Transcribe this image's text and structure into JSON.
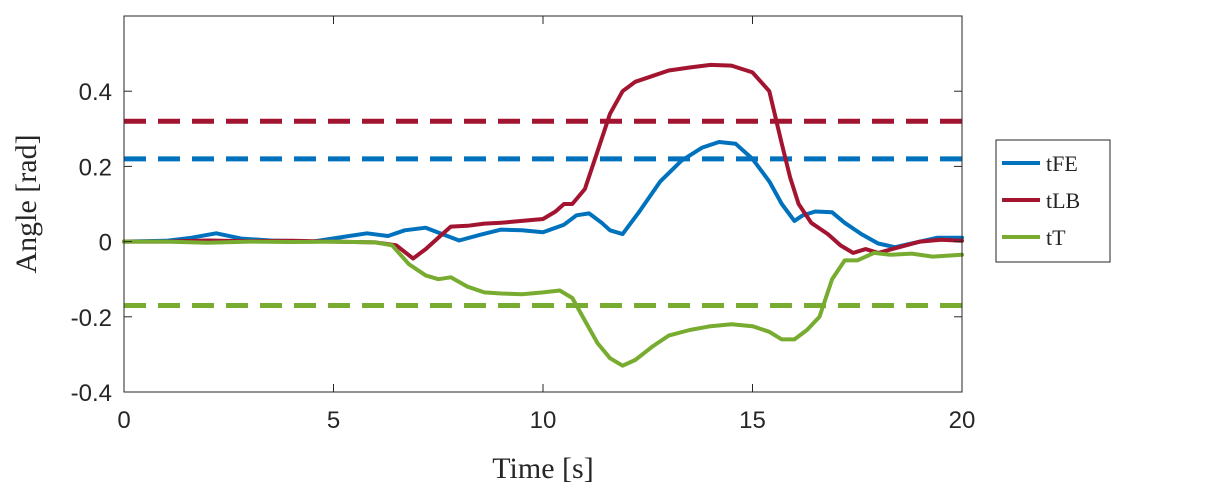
{
  "chart_data": {
    "type": "line",
    "xlabel": "Time [s]",
    "ylabel": "Angle [rad]",
    "xlim": [
      0,
      20
    ],
    "ylim": [
      -0.4,
      0.6
    ],
    "xticks": [
      0,
      5,
      10,
      15,
      20
    ],
    "xtick_labels": [
      "0",
      "5",
      "10",
      "15",
      "20"
    ],
    "yticks": [
      -0.4,
      -0.2,
      0,
      0.2,
      0.4
    ],
    "ytick_labels": [
      "-0.4",
      "-0.2",
      "0",
      "0.2",
      "0.4"
    ],
    "grid": false,
    "legend_position": "outside-right",
    "series": [
      {
        "name": "tFE",
        "color": "#0072BD",
        "style": "solid",
        "x": [
          0,
          1,
          1.6,
          2.2,
          2.8,
          3.5,
          4.5,
          5.2,
          5.8,
          6.3,
          6.7,
          7.2,
          7.6,
          8.0,
          8.5,
          9.0,
          9.5,
          10.0,
          10.5,
          10.8,
          11.1,
          11.4,
          11.6,
          11.9,
          12.3,
          12.8,
          13.3,
          13.8,
          14.2,
          14.6,
          15.0,
          15.4,
          15.7,
          16.0,
          16.2,
          16.5,
          16.9,
          17.2,
          17.6,
          18.0,
          18.4,
          18.8,
          19.4,
          20.0
        ],
        "y": [
          0,
          0.002,
          0.01,
          0.022,
          0.008,
          0.003,
          0.0,
          0.012,
          0.022,
          0.015,
          0.03,
          0.037,
          0.02,
          0.003,
          0.018,
          0.032,
          0.03,
          0.025,
          0.045,
          0.07,
          0.075,
          0.05,
          0.03,
          0.02,
          0.08,
          0.16,
          0.215,
          0.25,
          0.265,
          0.26,
          0.22,
          0.16,
          0.1,
          0.055,
          0.07,
          0.08,
          0.078,
          0.05,
          0.02,
          -0.005,
          -0.015,
          -0.005,
          0.01,
          0.01
        ]
      },
      {
        "name": "tLB",
        "color": "#A2142F",
        "style": "solid",
        "x": [
          0,
          1,
          2,
          3,
          4,
          5,
          6,
          6.5,
          6.9,
          7.2,
          7.5,
          7.8,
          8.2,
          8.6,
          9.0,
          9.5,
          10.0,
          10.3,
          10.5,
          10.7,
          11.0,
          11.3,
          11.6,
          11.9,
          12.2,
          12.6,
          13.0,
          13.5,
          14.0,
          14.5,
          15.0,
          15.4,
          15.7,
          15.9,
          16.1,
          16.4,
          16.8,
          17.1,
          17.4,
          17.7,
          18.0,
          18.5,
          19.0,
          19.5,
          20.0
        ],
        "y": [
          0,
          0,
          0.003,
          0.001,
          0.002,
          0.0,
          -0.002,
          -0.01,
          -0.045,
          -0.02,
          0.01,
          0.04,
          0.042,
          0.048,
          0.05,
          0.055,
          0.06,
          0.08,
          0.1,
          0.1,
          0.14,
          0.24,
          0.34,
          0.4,
          0.425,
          0.44,
          0.455,
          0.463,
          0.47,
          0.468,
          0.45,
          0.4,
          0.26,
          0.17,
          0.1,
          0.05,
          0.02,
          -0.01,
          -0.03,
          -0.02,
          -0.03,
          -0.015,
          0.0,
          0.005,
          0.002
        ]
      },
      {
        "name": "tT",
        "color": "#77AC30",
        "style": "solid",
        "x": [
          0,
          1,
          2,
          3,
          4,
          5,
          6,
          6.4,
          6.8,
          7.2,
          7.5,
          7.8,
          8.2,
          8.6,
          9.0,
          9.5,
          10.0,
          10.4,
          10.7,
          11.0,
          11.3,
          11.6,
          11.9,
          12.2,
          12.6,
          13.0,
          13.5,
          14.0,
          14.5,
          15.0,
          15.4,
          15.7,
          16.0,
          16.3,
          16.6,
          16.9,
          17.2,
          17.5,
          17.9,
          18.3,
          18.8,
          19.3,
          20.0
        ],
        "y": [
          0,
          0,
          -0.003,
          0,
          -0.001,
          0,
          -0.002,
          -0.01,
          -0.06,
          -0.09,
          -0.1,
          -0.095,
          -0.12,
          -0.135,
          -0.138,
          -0.14,
          -0.135,
          -0.13,
          -0.15,
          -0.21,
          -0.27,
          -0.31,
          -0.33,
          -0.315,
          -0.28,
          -0.25,
          -0.235,
          -0.225,
          -0.22,
          -0.225,
          -0.24,
          -0.26,
          -0.26,
          -0.235,
          -0.2,
          -0.1,
          -0.05,
          -0.05,
          -0.03,
          -0.035,
          -0.032,
          -0.04,
          -0.035
        ]
      }
    ],
    "reference_lines": [
      {
        "series": "tLB",
        "y": 0.32,
        "color": "#A2142F",
        "style": "dashed"
      },
      {
        "series": "tFE",
        "y": 0.22,
        "color": "#0072BD",
        "style": "dashed"
      },
      {
        "series": "tT",
        "y": -0.17,
        "color": "#77AC30",
        "style": "dashed"
      }
    ]
  }
}
